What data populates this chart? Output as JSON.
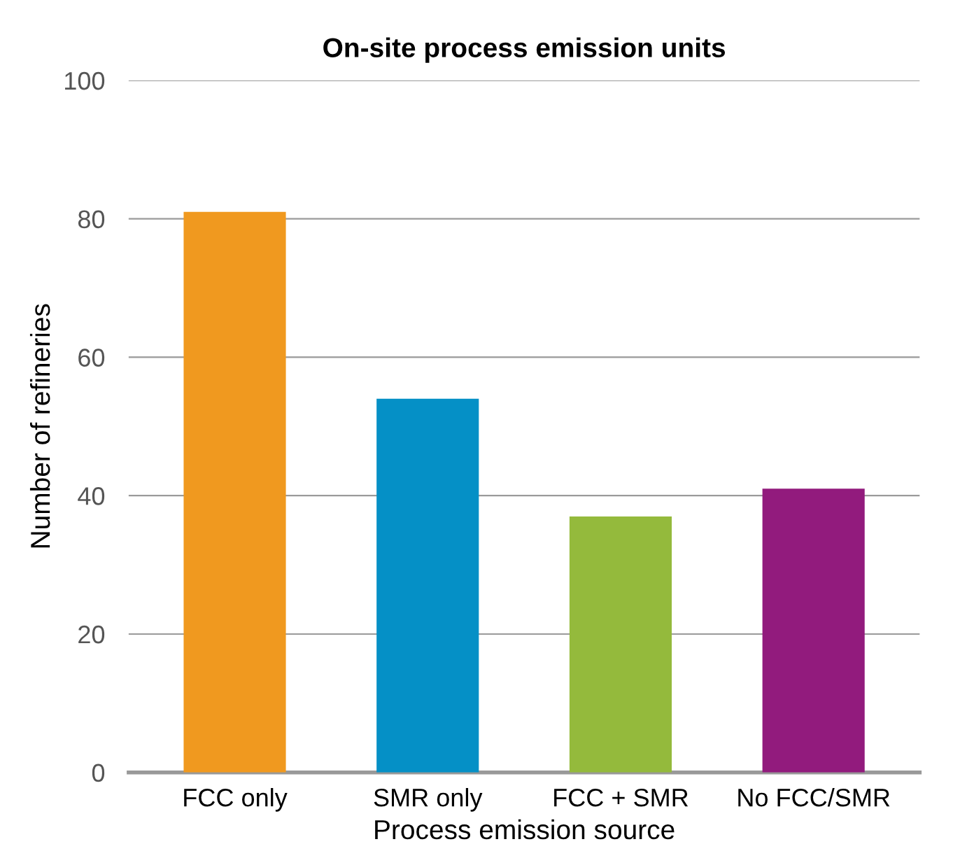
{
  "chart_data": {
    "type": "bar",
    "title": "On-site process emission units",
    "xlabel": "Process emission source",
    "ylabel": "Number of refineries",
    "categories": [
      "FCC only",
      "SMR only",
      "FCC + SMR",
      "No FCC/SMR"
    ],
    "values": [
      81,
      54,
      37,
      41
    ],
    "colors": [
      "#f0991f",
      "#0590c6",
      "#94ba3c",
      "#921b7d"
    ],
    "ylim": [
      0,
      100
    ],
    "yticks": [
      0,
      20,
      40,
      60,
      80,
      100
    ],
    "grid": "y"
  }
}
